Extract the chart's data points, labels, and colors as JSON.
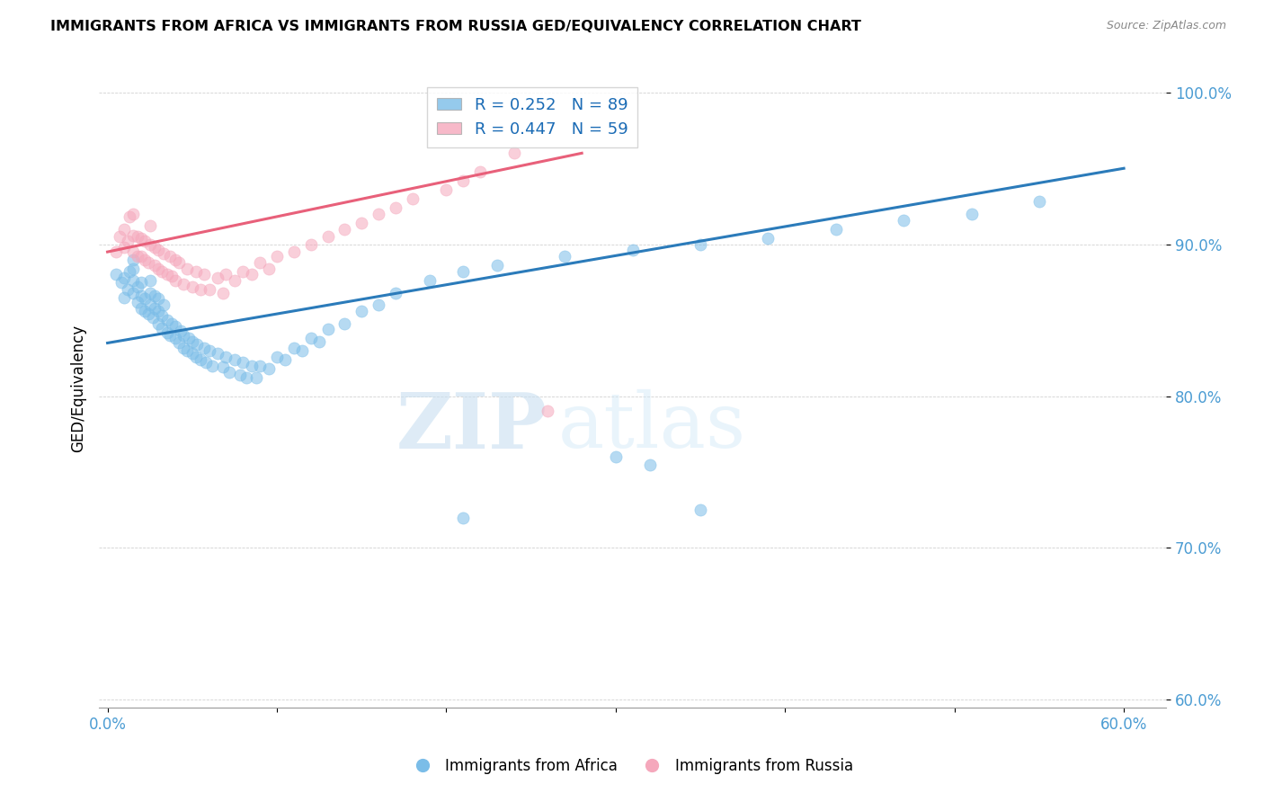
{
  "title": "IMMIGRANTS FROM AFRICA VS IMMIGRANTS FROM RUSSIA GED/EQUIVALENCY CORRELATION CHART",
  "source": "Source: ZipAtlas.com",
  "ylabel": "GED/Equivalency",
  "xlim": [
    -0.005,
    0.625
  ],
  "ylim": [
    0.595,
    1.015
  ],
  "xtick_positions": [
    0.0,
    0.1,
    0.2,
    0.3,
    0.4,
    0.5,
    0.6
  ],
  "xticklabels": [
    "0.0%",
    "",
    "",
    "",
    "",
    "",
    "60.0%"
  ],
  "ytick_positions": [
    0.6,
    0.7,
    0.8,
    0.9,
    1.0
  ],
  "yticklabels": [
    "60.0%",
    "70.0%",
    "80.0%",
    "90.0%",
    "100.0%"
  ],
  "africa_R": 0.252,
  "africa_N": 89,
  "russia_R": 0.447,
  "russia_N": 59,
  "africa_color": "#7bbde8",
  "russia_color": "#f5a8bc",
  "africa_line_color": "#2b7bba",
  "russia_line_color": "#e8607a",
  "watermark_zip": "ZIP",
  "watermark_atlas": "atlas",
  "africa_label": "Immigrants from Africa",
  "russia_label": "Immigrants from Russia",
  "africa_scatter_x": [
    0.005,
    0.008,
    0.01,
    0.01,
    0.012,
    0.013,
    0.015,
    0.015,
    0.015,
    0.015,
    0.018,
    0.018,
    0.02,
    0.02,
    0.02,
    0.022,
    0.022,
    0.024,
    0.025,
    0.025,
    0.025,
    0.027,
    0.028,
    0.028,
    0.03,
    0.03,
    0.03,
    0.032,
    0.032,
    0.033,
    0.035,
    0.035,
    0.037,
    0.038,
    0.04,
    0.04,
    0.042,
    0.043,
    0.045,
    0.045,
    0.047,
    0.048,
    0.05,
    0.05,
    0.052,
    0.053,
    0.055,
    0.057,
    0.058,
    0.06,
    0.062,
    0.065,
    0.068,
    0.07,
    0.072,
    0.075,
    0.078,
    0.08,
    0.082,
    0.085,
    0.088,
    0.09,
    0.095,
    0.1,
    0.105,
    0.11,
    0.115,
    0.12,
    0.125,
    0.13,
    0.14,
    0.15,
    0.16,
    0.17,
    0.19,
    0.21,
    0.23,
    0.27,
    0.31,
    0.35,
    0.39,
    0.43,
    0.47,
    0.51,
    0.55,
    0.3,
    0.32,
    0.21,
    0.35
  ],
  "africa_scatter_y": [
    0.88,
    0.875,
    0.865,
    0.878,
    0.87,
    0.882,
    0.868,
    0.876,
    0.884,
    0.89,
    0.862,
    0.872,
    0.858,
    0.866,
    0.875,
    0.856,
    0.864,
    0.854,
    0.86,
    0.868,
    0.876,
    0.852,
    0.858,
    0.866,
    0.848,
    0.856,
    0.864,
    0.845,
    0.853,
    0.86,
    0.842,
    0.85,
    0.84,
    0.848,
    0.838,
    0.846,
    0.835,
    0.843,
    0.832,
    0.84,
    0.83,
    0.838,
    0.828,
    0.836,
    0.826,
    0.834,
    0.824,
    0.832,
    0.822,
    0.83,
    0.82,
    0.828,
    0.819,
    0.826,
    0.816,
    0.824,
    0.814,
    0.822,
    0.812,
    0.82,
    0.812,
    0.82,
    0.818,
    0.826,
    0.824,
    0.832,
    0.83,
    0.838,
    0.836,
    0.844,
    0.848,
    0.856,
    0.86,
    0.868,
    0.876,
    0.882,
    0.886,
    0.892,
    0.896,
    0.9,
    0.904,
    0.91,
    0.916,
    0.92,
    0.928,
    0.76,
    0.755,
    0.72,
    0.725
  ],
  "russia_scatter_x": [
    0.005,
    0.007,
    0.01,
    0.01,
    0.012,
    0.013,
    0.015,
    0.015,
    0.015,
    0.018,
    0.018,
    0.02,
    0.02,
    0.022,
    0.022,
    0.024,
    0.025,
    0.025,
    0.028,
    0.028,
    0.03,
    0.03,
    0.032,
    0.033,
    0.035,
    0.037,
    0.038,
    0.04,
    0.04,
    0.042,
    0.045,
    0.047,
    0.05,
    0.052,
    0.055,
    0.057,
    0.06,
    0.065,
    0.068,
    0.07,
    0.075,
    0.08,
    0.085,
    0.09,
    0.095,
    0.1,
    0.11,
    0.12,
    0.13,
    0.14,
    0.15,
    0.16,
    0.17,
    0.18,
    0.2,
    0.21,
    0.22,
    0.24,
    0.26
  ],
  "russia_scatter_y": [
    0.895,
    0.905,
    0.898,
    0.91,
    0.902,
    0.918,
    0.895,
    0.906,
    0.92,
    0.892,
    0.905,
    0.892,
    0.904,
    0.89,
    0.902,
    0.888,
    0.9,
    0.912,
    0.886,
    0.898,
    0.884,
    0.896,
    0.882,
    0.894,
    0.88,
    0.892,
    0.879,
    0.89,
    0.876,
    0.888,
    0.874,
    0.884,
    0.872,
    0.882,
    0.87,
    0.88,
    0.87,
    0.878,
    0.868,
    0.88,
    0.876,
    0.882,
    0.88,
    0.888,
    0.884,
    0.892,
    0.895,
    0.9,
    0.905,
    0.91,
    0.914,
    0.92,
    0.924,
    0.93,
    0.936,
    0.942,
    0.948,
    0.96,
    0.79
  ]
}
